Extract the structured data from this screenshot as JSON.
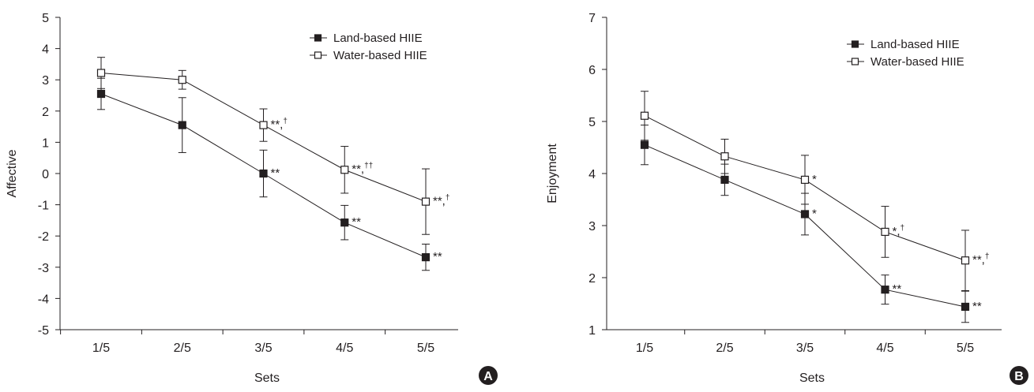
{
  "chart_data": [
    {
      "panel": "A",
      "type": "line",
      "xlabel": "Sets",
      "ylabel": "Affective",
      "categories": [
        "1/5",
        "2/5",
        "3/5",
        "4/5",
        "5/5"
      ],
      "ylim": [
        -5,
        5
      ],
      "yticks": [
        "5",
        "4",
        "3",
        "2",
        "1",
        "0",
        "-1",
        "-2",
        "-3",
        "-4",
        "-5"
      ],
      "legend_position": "top-right",
      "grid": false,
      "series": [
        {
          "name": "Land-based HIIE",
          "marker": "filled-square",
          "values": [
            2.55,
            1.55,
            0.0,
            -1.57,
            -2.68
          ],
          "error": [
            0.5,
            0.88,
            0.75,
            0.55,
            0.42
          ],
          "annotations": [
            {
              "index": 2,
              "main": "**",
              "sup": ""
            },
            {
              "index": 3,
              "main": "**",
              "sup": ""
            },
            {
              "index": 4,
              "main": "**",
              "sup": ""
            }
          ]
        },
        {
          "name": "Water-based HIIE",
          "marker": "open-square",
          "values": [
            3.22,
            3.0,
            1.55,
            0.12,
            -0.9
          ],
          "error": [
            0.5,
            0.3,
            0.52,
            0.75,
            1.05
          ],
          "annotations": [
            {
              "index": 2,
              "main": "**,",
              "sup": "†"
            },
            {
              "index": 3,
              "main": "**,",
              "sup": "††"
            },
            {
              "index": 4,
              "main": "**,",
              "sup": "†"
            }
          ]
        }
      ]
    },
    {
      "panel": "B",
      "type": "line",
      "xlabel": "Sets",
      "ylabel": "Enjoyment",
      "categories": [
        "1/5",
        "2/5",
        "3/5",
        "4/5",
        "5/5"
      ],
      "ylim": [
        1,
        7
      ],
      "yticks": [
        "7",
        "6",
        "5",
        "4",
        "3",
        "2",
        "1"
      ],
      "legend_position": "top-right",
      "grid": false,
      "series": [
        {
          "name": "Land-based HIIE",
          "marker": "filled-square",
          "values": [
            4.55,
            3.88,
            3.22,
            1.77,
            1.44
          ],
          "error": [
            0.38,
            0.3,
            0.4,
            0.28,
            0.3
          ],
          "annotations": [
            {
              "index": 2,
              "main": "*",
              "sup": ""
            },
            {
              "index": 3,
              "main": "**",
              "sup": ""
            },
            {
              "index": 4,
              "main": "**",
              "sup": ""
            }
          ]
        },
        {
          "name": "Water-based HIIE",
          "marker": "open-square",
          "values": [
            5.11,
            4.33,
            3.88,
            2.88,
            2.33
          ],
          "error": [
            0.47,
            0.33,
            0.47,
            0.49,
            0.58
          ],
          "annotations": [
            {
              "index": 2,
              "main": "*",
              "sup": ""
            },
            {
              "index": 3,
              "main": "*,",
              "sup": "†"
            },
            {
              "index": 4,
              "main": "**,",
              "sup": "†"
            }
          ]
        }
      ]
    }
  ]
}
